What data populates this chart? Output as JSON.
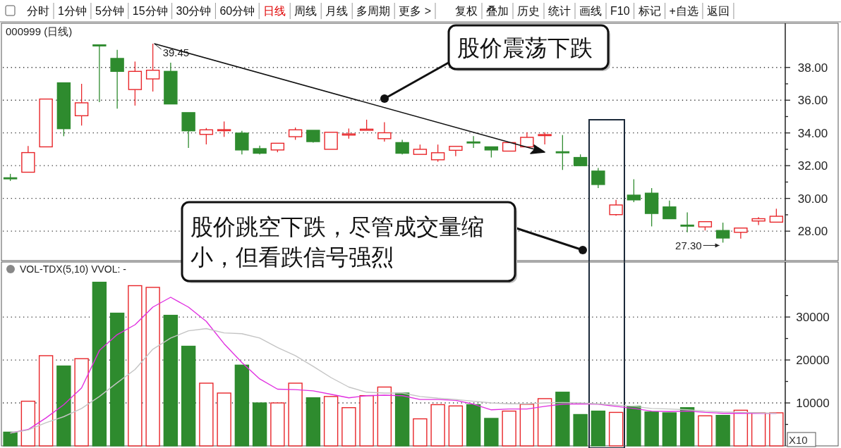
{
  "chart_data": [
    {
      "type": "other",
      "annotations": [
        "分时",
        "1分钟",
        "5分钟",
        "15分钟",
        "30分钟",
        "60分钟",
        "日线",
        "周线",
        "月线",
        "多周期",
        "更多 >",
        "复权",
        "叠加",
        "历史",
        "统计",
        "画线",
        "F10",
        "标记",
        "+自选",
        "返回"
      ],
      "colors": [
        "#111111",
        "#111111",
        "#111111",
        "#111111",
        "#111111",
        "#111111",
        "#e00000",
        "#111111",
        "#111111",
        "#111111",
        "#111111",
        "#111111",
        "#111111",
        "#111111",
        "#111111",
        "#111111",
        "#111111",
        "#111111",
        "#111111",
        "#111111"
      ]
    },
    {
      "type": "candlestick",
      "title": "000999 (日线)",
      "categories": [
        null,
        null,
        null,
        null,
        null,
        null,
        null,
        null,
        null,
        null,
        null,
        null,
        null,
        null,
        null,
        null,
        null,
        null,
        null,
        null,
        null,
        null,
        null,
        null,
        null,
        null,
        null,
        null,
        null,
        null,
        null,
        null,
        null,
        null,
        null,
        null,
        null,
        null,
        null,
        null,
        null,
        null,
        null,
        null
      ],
      "ohlc": [
        [
          31.26,
          31.5,
          31.07,
          31.25
        ],
        [
          31.6,
          33.2,
          31.6,
          32.8
        ],
        [
          33.15,
          36.07,
          33.15,
          36.07
        ],
        [
          37.06,
          37.06,
          33.8,
          34.26
        ],
        [
          35.05,
          37.0,
          34.45,
          35.84
        ],
        [
          39.38,
          39.38,
          35.88,
          39.36
        ],
        [
          38.55,
          39.08,
          35.48,
          37.76
        ],
        [
          36.65,
          38.36,
          35.67,
          37.76
        ],
        [
          37.3,
          39.45,
          36.53,
          37.83
        ],
        [
          37.76,
          38.29,
          35.77,
          35.77
        ],
        [
          35.24,
          35.24,
          33.08,
          34.13
        ],
        [
          33.91,
          34.3,
          33.3,
          34.19
        ],
        [
          34.16,
          34.7,
          33.76,
          34.2
        ],
        [
          33.99,
          34.13,
          32.69,
          32.96
        ],
        [
          33.04,
          33.22,
          32.69,
          32.76
        ],
        [
          32.96,
          33.37,
          32.82,
          33.37
        ],
        [
          33.77,
          34.33,
          33.58,
          34.19
        ],
        [
          34.16,
          34.16,
          33.41,
          33.47
        ],
        [
          33.0,
          34.04,
          33.0,
          34.04
        ],
        [
          33.87,
          34.27,
          33.65,
          33.94
        ],
        [
          34.16,
          34.81,
          34.16,
          34.23
        ],
        [
          33.65,
          34.66,
          33.47,
          34.01
        ],
        [
          33.41,
          33.58,
          32.69,
          32.76
        ],
        [
          32.69,
          33.29,
          32.69,
          33.0
        ],
        [
          32.36,
          33.29,
          32.24,
          32.79
        ],
        [
          32.94,
          33.18,
          32.58,
          33.18
        ],
        [
          33.45,
          33.8,
          33.08,
          33.42
        ],
        [
          33.15,
          33.15,
          32.5,
          32.96
        ],
        [
          32.89,
          33.41,
          32.89,
          33.41
        ],
        [
          33.15,
          34.04,
          33.15,
          33.73
        ],
        [
          33.84,
          34.04,
          33.3,
          33.9
        ],
        [
          32.85,
          33.87,
          31.74,
          32.82
        ],
        [
          32.5,
          32.69,
          31.97,
          32.0
        ],
        [
          31.67,
          31.86,
          30.63,
          30.85
        ],
        [
          29.01,
          29.91,
          28.94,
          29.6
        ],
        [
          30.2,
          31.17,
          29.77,
          29.91
        ],
        [
          30.32,
          30.63,
          28.29,
          29.08
        ],
        [
          29.48,
          29.87,
          28.76,
          28.76
        ],
        [
          28.37,
          29.15,
          27.93,
          28.35
        ],
        [
          28.26,
          28.58,
          28.04,
          28.58
        ],
        [
          28.04,
          28.52,
          27.3,
          27.58
        ],
        [
          27.93,
          28.19,
          27.54,
          28.19
        ],
        [
          28.62,
          28.86,
          28.37,
          28.76
        ],
        [
          28.55,
          29.37,
          28.55,
          28.91
        ]
      ],
      "colors": [
        "#2e8b2e",
        "#e8262a",
        "#e8262a",
        "#2e8b2e",
        "#e8262a",
        "#2e8b2e",
        "#2e8b2e",
        "#e8262a",
        "#e8262a",
        "#2e8b2e",
        "#2e8b2e",
        "#e8262a",
        "#e8262a",
        "#2e8b2e",
        "#2e8b2e",
        "#e8262a",
        "#e8262a",
        "#2e8b2e",
        "#e8262a",
        "#e8262a",
        "#e8262a",
        "#e8262a",
        "#2e8b2e",
        "#e8262a",
        "#e8262a",
        "#e8262a",
        "#2e8b2e",
        "#2e8b2e",
        "#e8262a",
        "#e8262a",
        "#e8262a",
        "#2e8b2e",
        "#2e8b2e",
        "#2e8b2e",
        "#e8262a",
        "#2e8b2e",
        "#2e8b2e",
        "#2e8b2e",
        "#2e8b2e",
        "#e8262a",
        "#2e8b2e",
        "#e8262a",
        "#e8262a",
        "#e8262a"
      ],
      "ylim": [
        26.2,
        40.7
      ],
      "yticks": [
        {
          "value": 28,
          "label": "28.00"
        },
        {
          "value": 29,
          "label": null
        },
        {
          "value": 30,
          "label": "30.00"
        },
        {
          "value": 31,
          "label": null
        },
        {
          "value": 32,
          "label": "32.00"
        },
        {
          "value": 33,
          "label": null
        },
        {
          "value": 34,
          "label": "34.00"
        },
        {
          "value": 35,
          "label": null
        },
        {
          "value": 36,
          "label": "36.00"
        },
        {
          "value": 37,
          "label": null
        },
        {
          "value": 38,
          "label": "38.00"
        }
      ],
      "grid": "y",
      "tick_labels": "y",
      "annotations": [
        "39.45",
        "27.30",
        "股价震荡下跌",
        "股价跳空下跌，尽管成交量缩小，但看跌信号强烈"
      ]
    },
    {
      "type": "bar",
      "title": "VOL-TDX(5,10) VVOL: -",
      "categories": [
        null,
        null,
        null,
        null,
        null,
        null,
        null,
        null,
        null,
        null,
        null,
        null,
        null,
        null,
        null,
        null,
        null,
        null,
        null,
        null,
        null,
        null,
        null,
        null,
        null,
        null,
        null,
        null,
        null,
        null,
        null,
        null,
        null,
        null,
        null,
        null,
        null,
        null,
        null,
        null,
        null,
        null,
        null,
        null
      ],
      "series": [
        {
          "type": "bar",
          "values": [
            3200,
            10400,
            21000,
            18600,
            20300,
            38100,
            30900,
            37300,
            36900,
            30400,
            23200,
            14600,
            12300,
            18800,
            10000,
            10000,
            14600,
            11200,
            11500,
            8900,
            11700,
            13700,
            12300,
            6300,
            9600,
            9300,
            9600,
            6400,
            8100,
            9700,
            11000,
            12500,
            7300,
            8100,
            7800,
            9200,
            7900,
            7700,
            8900,
            7000,
            7100,
            8300,
            7700,
            7700
          ],
          "colors": [
            "#2e8b2e",
            "#e8262a",
            "#e8262a",
            "#2e8b2e",
            "#e8262a",
            "#2e8b2e",
            "#2e8b2e",
            "#e8262a",
            "#e8262a",
            "#2e8b2e",
            "#2e8b2e",
            "#e8262a",
            "#e8262a",
            "#2e8b2e",
            "#2e8b2e",
            "#e8262a",
            "#e8262a",
            "#2e8b2e",
            "#e8262a",
            "#e8262a",
            "#e8262a",
            "#e8262a",
            "#2e8b2e",
            "#e8262a",
            "#e8262a",
            "#e8262a",
            "#2e8b2e",
            "#2e8b2e",
            "#e8262a",
            "#e8262a",
            "#e8262a",
            "#2e8b2e",
            "#2e8b2e",
            "#2e8b2e",
            "#e8262a",
            "#2e8b2e",
            "#2e8b2e",
            "#2e8b2e",
            "#2e8b2e",
            "#e8262a",
            "#2e8b2e",
            "#e8262a",
            "#e8262a",
            "#e8262a"
          ]
        },
        {
          "type": "line",
          "color": "#e030e0",
          "values": [
            3000,
            3800,
            6500,
            9600,
            13500,
            22200,
            25900,
            28200,
            32300,
            34600,
            32300,
            29000,
            23800,
            19400,
            15600,
            13200,
            13100,
            12800,
            12000,
            11200,
            11700,
            11800,
            11700,
            10800,
            10800,
            10600,
            9700,
            8400,
            8600,
            8600,
            9200,
            9700,
            9800,
            9700,
            9200,
            8700,
            8100,
            8000,
            8100,
            7800,
            7600,
            7600,
            7600,
            7600
          ]
        },
        {
          "type": "line",
          "color": "#c4c4c4",
          "values": [
            3000,
            3700,
            5400,
            6800,
            8700,
            11500,
            14700,
            17800,
            22500,
            25100,
            26800,
            27300,
            26300,
            26100,
            25100,
            22900,
            21000,
            18500,
            15900,
            13700,
            12500,
            12300,
            12300,
            11500,
            11100,
            10800,
            10400,
            10000,
            9800,
            9800,
            10000,
            10100,
            10000,
            9800,
            9500,
            9200,
            8700,
            8600,
            8400,
            8100,
            7900,
            7800,
            7700,
            7600
          ]
        }
      ],
      "ylim": [
        0,
        42800
      ],
      "yticks": [
        {
          "value": 5000,
          "label": null
        },
        {
          "value": 10000,
          "label": "10000"
        },
        {
          "value": 15000,
          "label": null
        },
        {
          "value": 20000,
          "label": "20000"
        },
        {
          "value": 25000,
          "label": null
        },
        {
          "value": 30000,
          "label": "30000"
        },
        {
          "value": 35000,
          "label": null
        }
      ],
      "grid": "y",
      "tick_labels": "y",
      "annotations": [
        "X10"
      ]
    }
  ]
}
